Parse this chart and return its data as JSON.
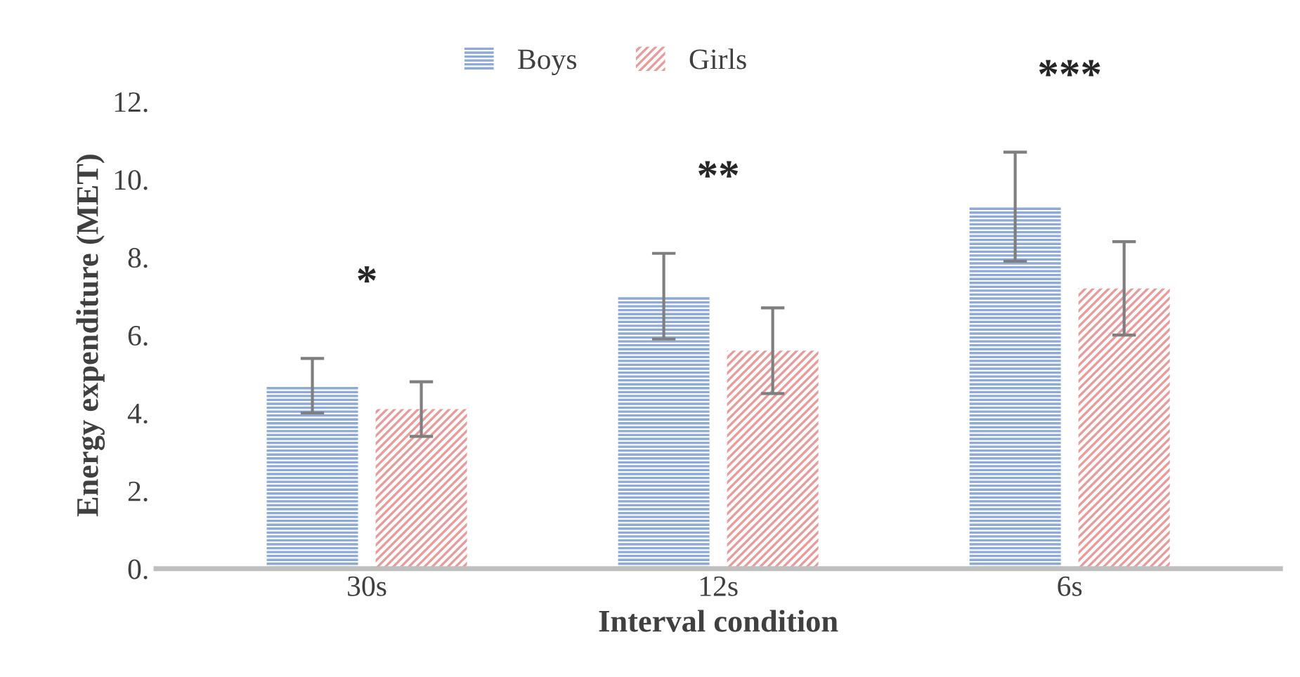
{
  "chart_data": {
    "type": "bar",
    "xlabel": "Interval condition",
    "ylabel": "Energy expenditure (MET)",
    "categories": [
      "30s",
      "12s",
      "6s"
    ],
    "series": [
      {
        "name": "Boys",
        "color": "#8eaadb",
        "values": [
          4.7,
          7.0,
          9.3
        ],
        "errors": [
          0.7,
          1.1,
          1.4
        ]
      },
      {
        "name": "Girls",
        "color": "#e79b9b",
        "values": [
          4.1,
          5.6,
          7.2
        ],
        "errors": [
          0.7,
          1.1,
          1.2
        ]
      }
    ],
    "ylim": [
      0,
      12
    ],
    "yticks": [
      {
        "value": 0,
        "label": "0."
      },
      {
        "value": 2,
        "label": "2."
      },
      {
        "value": 4,
        "label": "4."
      },
      {
        "value": 6,
        "label": "6."
      },
      {
        "value": 8,
        "label": "8."
      },
      {
        "value": 10,
        "label": "10."
      },
      {
        "value": 12,
        "label": "12."
      }
    ],
    "annotations": [
      "*",
      "**",
      "***"
    ],
    "legend": "top",
    "grid": false
  }
}
